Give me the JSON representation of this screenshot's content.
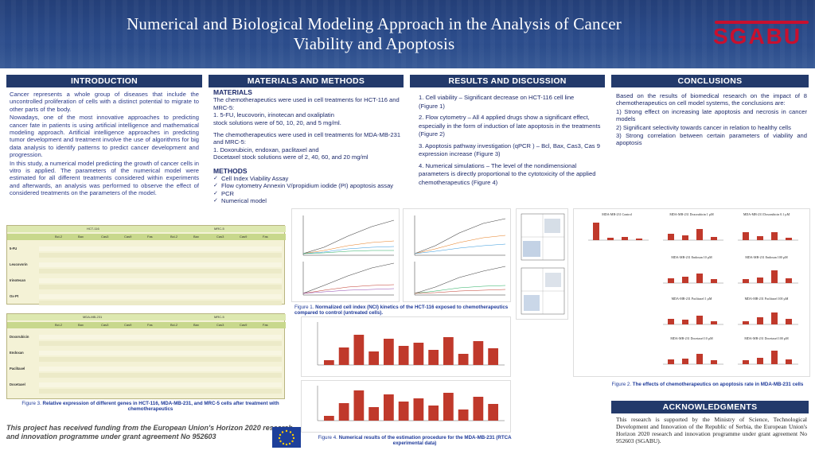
{
  "header": {
    "title": "Numerical and Biological Modeling Approach in the Analysis of Cancer Viability and Apoptosis",
    "logo_text": "SGABU"
  },
  "intro": {
    "heading": "INTRODUCTION",
    "p1": "Cancer represents a whole group of diseases that include the uncontrolled proliferation of cells with a distinct potential to migrate to other parts of the body.",
    "p2": "Nowadays, one of the most innovative approaches to predicting cancer fate in patients is using artificial intelligence and mathematical modeling approach. Artificial intelligence approaches in predicting tumor development and treatment involve the use of algorithms for big data analysis to identify patterns to predict cancer development and progression.",
    "p3": "In this study, a numerical model predicting the growth of cancer cells in vitro is applied. The parameters of the numerical model were estimated for all different treatments considered within experiments and afterwards, an analysis was performed to observe the effect of considered treatments on the parameters of the model."
  },
  "methods": {
    "heading": "MATERIALS AND METHODS",
    "materials_title": "MATERIALS",
    "m1": "The chemotherapeutics were used in cell treatments for HCT-116 and MRC-5:",
    "m2": "1.  5-FU, leucovorin, irinotecan and oxaliplatin",
    "m3": "stock solutions were of 50, 10, 20, and 5 mg/ml.",
    "m4": "The chemotherapeutics were used in cell treatments for MDA-MB-231 and MRC-5:",
    "m5": "1.  Doxorubicin, endoxan, paclitaxel and",
    "m6": "Docetaxel stock solutions were of 2, 40, 60, and 20 mg/ml",
    "methods_title": "METHODS",
    "list": [
      "Cell Index Viability Assay",
      "Flow cytometry Annexin V/propidium iodide (PI) apoptosis assay",
      "PCR",
      "Numerical model"
    ]
  },
  "results": {
    "heading": "RESULTS AND DISCUSSION",
    "r1": "1. Cell viability – Significant decrease on HCT-116 cell line",
    "r1b": "(Figure 1)",
    "r2": "2.  Flow cytometry – All 4 applied drugs show a significant effect, especially in the form of induction of late apoptosis in the treatments",
    "r2b": "(Figure 2)",
    "r3": "3. Apoptosis pathway investigation (qPCR ) – Bcl, Bax, Cas3, Cas 9 expression increase",
    "r3b": "(Figure 3)",
    "r4": "4. Numerical simulations – The level of the nondimensional parameters is directly proportional  to the cytotoxicity of the applied chemotherapeutics",
    "r4b": "(Figure 4)"
  },
  "conclusions": {
    "heading": "CONCLUSIONS",
    "intro": "Based on the results of biomedical research on the impact of 8 chemotherapeutics on cell model systems, the conclusions are:",
    "c1": "1) Strong effect on increasing late apoptosis and necrosis in cancer models",
    "c2": "2) Significant selectivity towards cancer in relation to healthy cells",
    "c3": "3)  Strong correlation between certain parameters of viability and apoptosis"
  },
  "tables": {
    "t1_left": "HCT-116",
    "t1_right": "MRC-5",
    "t2_left": "MDA-MB-231",
    "t2_right": "MRC-5",
    "genes_top": [
      "Bcl-2",
      "Bax",
      "Cas3",
      "Cas9",
      "Fas"
    ],
    "genes_bottom": [
      "Bcl-2",
      "Bax",
      "Cas3",
      "Cas9",
      "Fas"
    ],
    "drugs_top": [
      "5-FU",
      "Leucovorin",
      "Irinotecan",
      "Ox-Pt"
    ],
    "drugs_bottom": [
      "Doxorubicin",
      "Endoxan",
      "Paclitaxel",
      "Docetaxel"
    ]
  },
  "captions": {
    "fig1a": "Figure 1.",
    "fig1b": "Normalized cell index (NCI) kinetics of the HCT-116 exposed to chemotherapeutics compared to control (untreated cells).",
    "fig2a": "Figure 2.",
    "fig2b": "The effects of chemotherapeutics on apoptosis rate in MDA-MB-231 cells",
    "fig3a": "Figure 3.",
    "fig3b": "Relative expression of different genes in HCT-116, MDA-MB-231, and MRC-5 cells after treatment with chemotherapeutics",
    "fig4a": "Figure 4.",
    "fig4b": "Numerical results of the estimation procedure for the MDA-MB-231 (RTCA experimental data)"
  },
  "fig2_panels": [
    "MDA-MB-231 Control",
    "MDA-MB-231 Doxorubicin 1 µM",
    "MDA-MB-231 Doxorubicin 0.1 µM",
    "MDA-MB-231 Endoxan 10 µM",
    "MDA-MB-231 Endoxan 100 µM",
    "MDA-MB-231 Paclitaxel 1 µM",
    "MDA-MB-231 Paclitaxel 100 µM",
    "MDA-MB-231 Docetaxel 10 µM",
    "MDA-MB-231 Docetaxel 100 µM"
  ],
  "acknowledgments": {
    "heading": "ACKNOWLEDGMENTS",
    "text": "This research is supported by the Ministry of Science, Technological Development and Innovation of the Republic of Serbia, the European Union's Horizon 2020 research and innovation programme under grant agreement No 952603 (SGABU)."
  },
  "footer": {
    "text": "This project has received funding from the European Union's Horizon 2020 research and innovation programme under grant agreement No 952603"
  },
  "colors": {
    "banner": "#2c4d8c",
    "header_bar": "#233a6b",
    "caption": "#1e3a9a",
    "bar_red": "#c0392b",
    "table_bg": "#f4f2d6",
    "table_header": "#c8d88c"
  }
}
